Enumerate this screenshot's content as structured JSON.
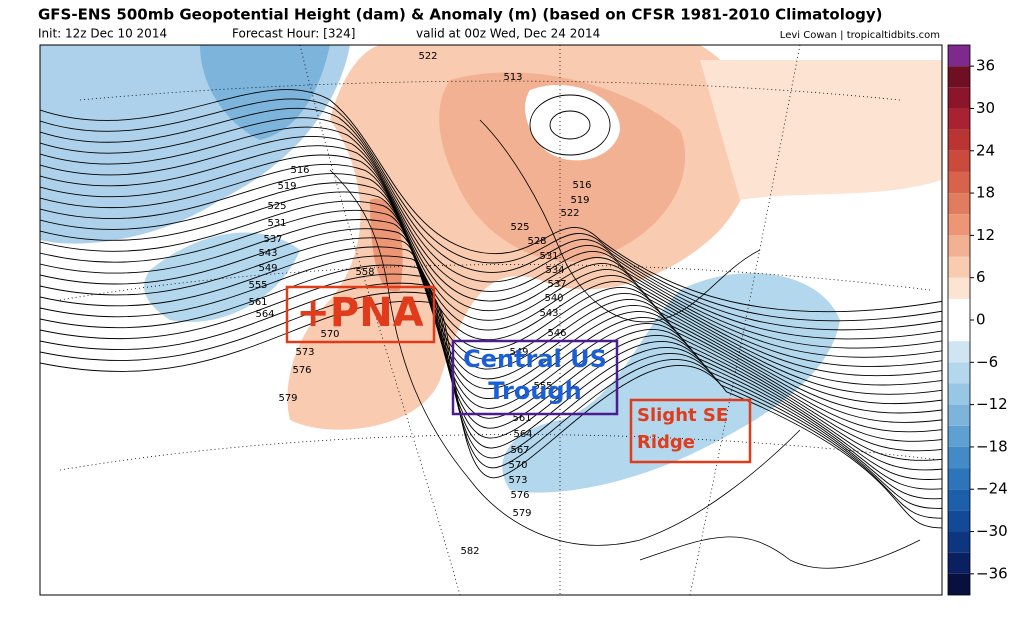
{
  "header": {
    "title": "GFS-ENS 500mb Geopotential Height (dam) & Anomaly (m) (based on CFSR 1981-2010 Climatology)",
    "init": "Init: 12z Dec 10 2014",
    "forecast_hour": "Forecast Hour: [324]",
    "valid": "valid at 00z Wed, Dec 24 2014",
    "credit": "Levi Cowan | tropicaltidbits.com"
  },
  "contour_labels": [
    "516",
    "519",
    "525",
    "531",
    "537",
    "543",
    "549",
    "555",
    "561",
    "564",
    "570",
    "573",
    "576",
    "579",
    "558",
    "522",
    "513",
    "516",
    "519",
    "522",
    "525",
    "528",
    "531",
    "534",
    "537",
    "540",
    "543",
    "546",
    "549",
    "555",
    "561",
    "564",
    "567",
    "570",
    "573",
    "576",
    "579",
    "582"
  ],
  "annotations": [
    "+PNA",
    "Central US Trough",
    "Slight SE Ridge"
  ],
  "colorbar": {
    "lim": [
      -39,
      39
    ],
    "colors": [
      "#08103f",
      "#0a2060",
      "#0d3580",
      "#134a98",
      "#1d5fab",
      "#2d74bb",
      "#438ac7",
      "#5fa0d2",
      "#7cb4dc",
      "#98c6e5",
      "#b3d7ec",
      "#cfe6f2",
      "#ffffff",
      "#ffffff",
      "#fde3d1",
      "#f9cbb1",
      "#f3b193",
      "#ec9676",
      "#e27c5e",
      "#d7634b",
      "#ca4b3c",
      "#bb3434",
      "#a82232",
      "#8d152b",
      "#6f0f24",
      "#7d2a8c"
    ],
    "ticks": [
      36,
      30,
      24,
      18,
      12,
      6,
      0,
      {
        "value": -6,
        "label": "−6"
      },
      {
        "value": -12,
        "label": "−12"
      },
      {
        "value": -18,
        "label": "−18"
      },
      {
        "value": -24,
        "label": "−24"
      },
      {
        "value": -30,
        "label": "−30"
      },
      {
        "value": -36,
        "label": "−36"
      }
    ]
  }
}
